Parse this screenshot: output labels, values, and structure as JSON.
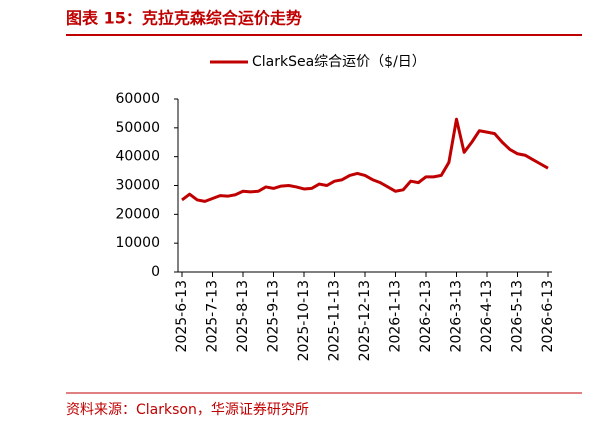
{
  "chart_data": {
    "type": "line",
    "title": "图表 15：克拉克森综合运价走势",
    "source": "资料来源：Clarkson，华源证券研究所",
    "categories": [
      "2025-6-13",
      null,
      null,
      null,
      "2025-7-13",
      null,
      null,
      null,
      "2025-8-13",
      null,
      null,
      null,
      "2025-9-13",
      null,
      null,
      null,
      "2025-10-13",
      null,
      null,
      null,
      "2025-11-13",
      null,
      null,
      null,
      "2025-12-13",
      null,
      null,
      null,
      "2026-1-13",
      null,
      null,
      null,
      "2026-2-13",
      null,
      null,
      null,
      "2026-3-13",
      null,
      null,
      null,
      "2026-4-13",
      null,
      null,
      null,
      "2026-5-13",
      null,
      null,
      null,
      "2026-6-13"
    ],
    "series": [
      {
        "name": "ClarkSea综合运价（$/日）",
        "color": "#c00000",
        "values": [
          25000,
          27000,
          25000,
          24500,
          25500,
          26500,
          26300,
          26800,
          28000,
          27800,
          28000,
          29500,
          29000,
          29800,
          30000,
          29500,
          28800,
          29000,
          30500,
          30000,
          31500,
          32000,
          33500,
          34200,
          33500,
          32000,
          31000,
          29500,
          28000,
          28500,
          31500,
          31000,
          33000,
          33000,
          33500,
          38000,
          53000,
          41500,
          45000,
          49000,
          48500,
          48000,
          45000,
          42500,
          41000,
          40500,
          39000,
          37500,
          36000
        ]
      }
    ],
    "ylim": [
      0,
      60000
    ],
    "yticks": [
      0,
      10000,
      20000,
      30000,
      40000,
      50000,
      60000
    ],
    "legend": "top"
  }
}
